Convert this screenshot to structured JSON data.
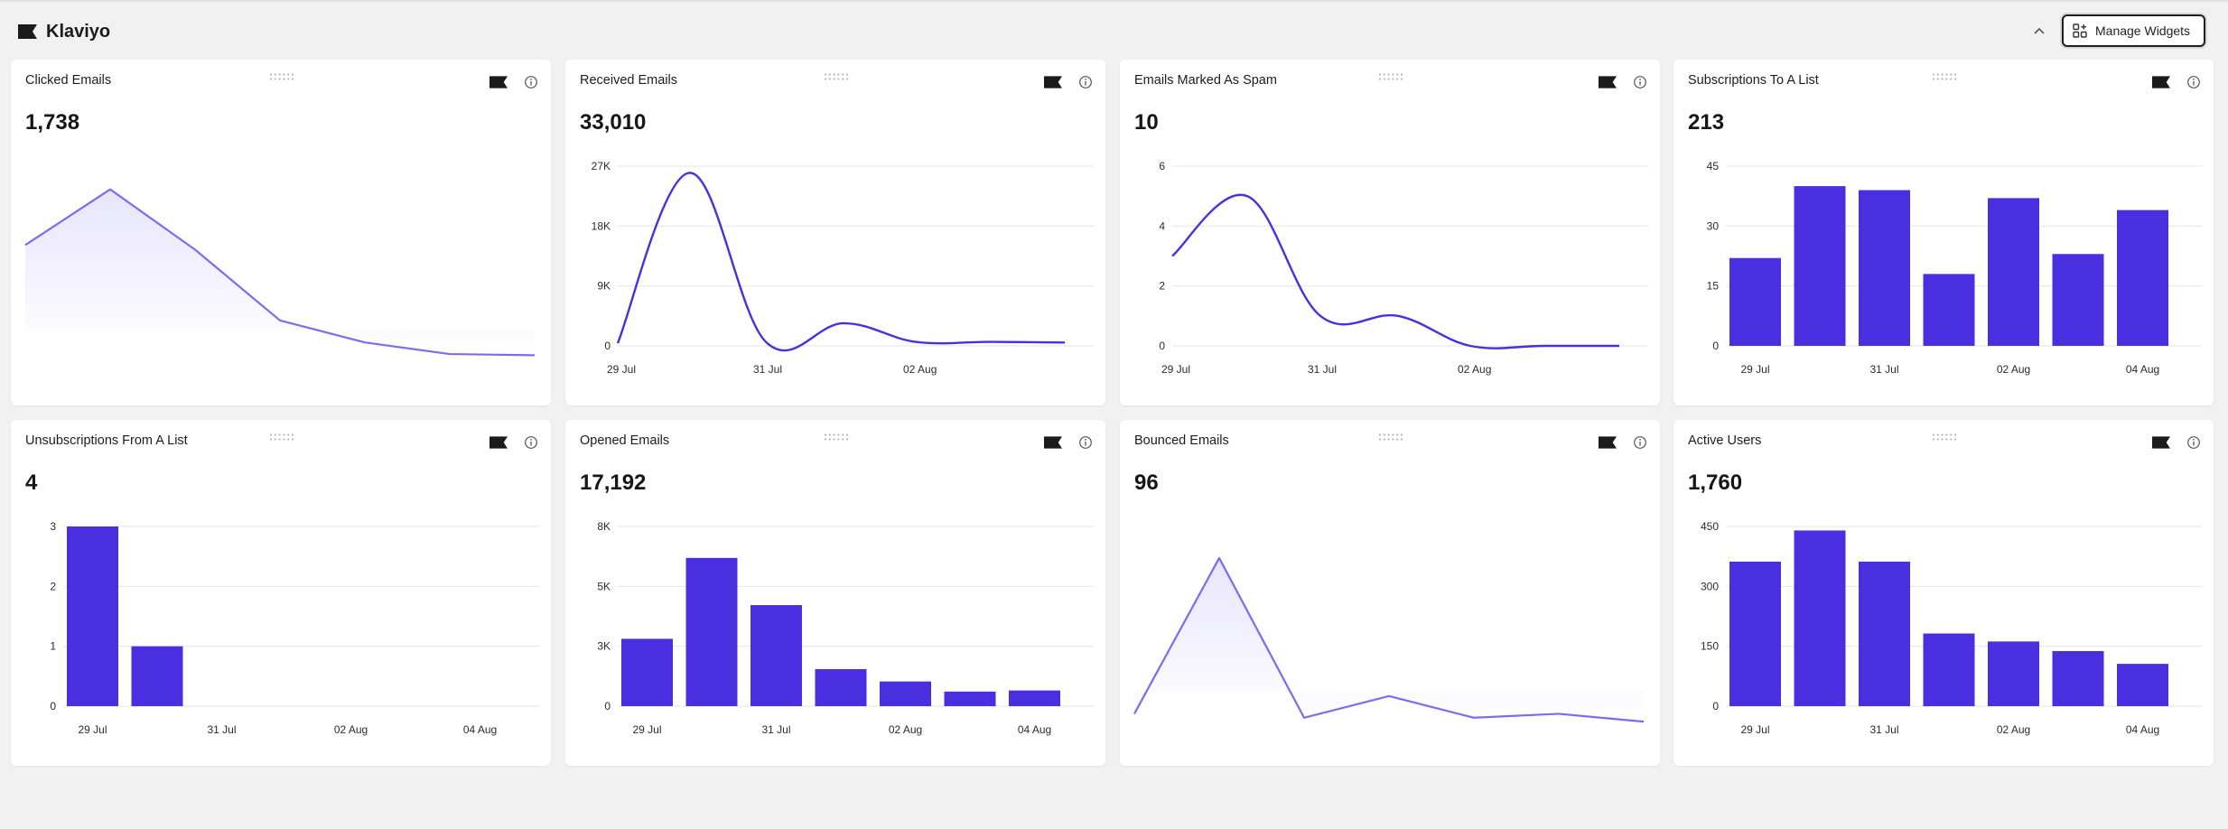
{
  "header": {
    "title": "Klaviyo",
    "manage_label": "Manage Widgets"
  },
  "colors": {
    "series": "#4a2fe0",
    "area_line": "#7b6cf0",
    "grid": "#e6e6e6"
  },
  "widgets": [
    {
      "title": "Clicked Emails",
      "value": "1,738"
    },
    {
      "title": "Received Emails",
      "value": "33,010"
    },
    {
      "title": "Emails Marked As Spam",
      "value": "10"
    },
    {
      "title": "Subscriptions To A List",
      "value": "213"
    },
    {
      "title": "Unsubscriptions From A List",
      "value": "4"
    },
    {
      "title": "Opened Emails",
      "value": "17,192"
    },
    {
      "title": "Bounced Emails",
      "value": "96"
    },
    {
      "title": "Active Users",
      "value": "1,760"
    }
  ],
  "chart_data": [
    {
      "type": "area",
      "title": "Clicked Emails",
      "values": [
        380,
        620,
        360,
        55,
        -40,
        -90,
        -95
      ],
      "grid": false,
      "axes": false
    },
    {
      "type": "line",
      "title": "Received Emails",
      "x": [
        "29 Jul",
        "",
        "31 Jul",
        "",
        "02 Aug",
        "",
        ""
      ],
      "y_ticks": [
        "0",
        "9K",
        "18K",
        "27K"
      ],
      "ylim": [
        0,
        27000
      ],
      "values": [
        400,
        26000,
        600,
        3400,
        600,
        600,
        500
      ],
      "x_tick_labels": [
        "29 Jul",
        "31 Jul",
        "02 Aug"
      ],
      "grid": true
    },
    {
      "type": "line",
      "title": "Emails Marked As Spam",
      "x": [
        "29 Jul",
        "",
        "31 Jul",
        "",
        "02 Aug",
        "",
        ""
      ],
      "y_ticks": [
        "0",
        "2",
        "4",
        "6"
      ],
      "ylim": [
        0,
        6
      ],
      "values": [
        3,
        5,
        1,
        1,
        0,
        0,
        0
      ],
      "x_tick_labels": [
        "29 Jul",
        "31 Jul",
        "02 Aug"
      ],
      "grid": true
    },
    {
      "type": "bar",
      "title": "Subscriptions To A List",
      "categories": [
        "29 Jul",
        "",
        "31 Jul",
        "",
        "02 Aug",
        "",
        "04 Aug"
      ],
      "y_ticks": [
        "0",
        "15",
        "30",
        "45"
      ],
      "ylim": [
        0,
        45
      ],
      "values": [
        22,
        40,
        39,
        18,
        37,
        23,
        34
      ],
      "grid": true
    },
    {
      "type": "bar",
      "title": "Unsubscriptions From A List",
      "categories": [
        "29 Jul",
        "",
        "31 Jul",
        "",
        "02 Aug",
        "",
        "04 Aug"
      ],
      "y_ticks": [
        "0",
        "1",
        "2",
        "3"
      ],
      "ylim": [
        0,
        3
      ],
      "values": [
        3,
        1,
        0,
        0,
        0,
        0,
        0
      ],
      "grid": true
    },
    {
      "type": "bar",
      "title": "Opened Emails",
      "categories": [
        "29 Jul",
        "",
        "31 Jul",
        "",
        "02 Aug",
        "",
        "04 Aug"
      ],
      "y_ticks": [
        "0",
        "3K",
        "5K",
        "8K"
      ],
      "ylim": [
        0,
        8000
      ],
      "values": [
        3000,
        6600,
        4500,
        1650,
        1100,
        650,
        700
      ],
      "grid": true
    },
    {
      "type": "area",
      "title": "Bounced Emails",
      "values": [
        5,
        84,
        3,
        14,
        3,
        5,
        1
      ],
      "grid": false,
      "axes": false
    },
    {
      "type": "bar",
      "title": "Active Users",
      "categories": [
        "29 Jul",
        "",
        "31 Jul",
        "",
        "02 Aug",
        "",
        "04 Aug"
      ],
      "y_ticks": [
        "0",
        "150",
        "300",
        "450"
      ],
      "ylim": [
        0,
        450
      ],
      "values": [
        362,
        440,
        362,
        182,
        162,
        138,
        106
      ],
      "grid": true
    }
  ]
}
